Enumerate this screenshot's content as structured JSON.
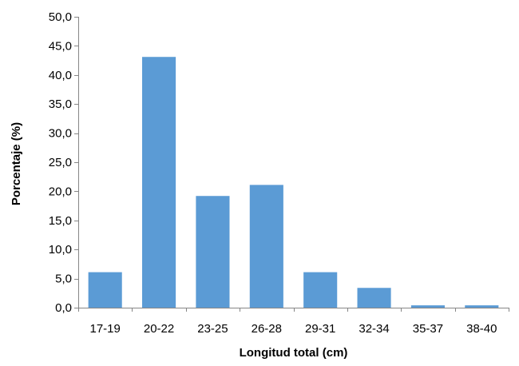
{
  "chart_data": {
    "type": "bar",
    "categories": [
      "17-19",
      "20-22",
      "23-25",
      "26-28",
      "29-31",
      "32-34",
      "35-37",
      "38-40"
    ],
    "values": [
      6.1,
      43.1,
      19.2,
      21.1,
      6.1,
      3.4,
      0.4,
      0.4
    ],
    "title": "",
    "xlabel": "Longitud total (cm)",
    "ylabel": "Porcentaje (%)",
    "ylim": [
      0,
      50
    ],
    "yticks": [
      "0,0",
      "5,0",
      "10,0",
      "15,0",
      "20,0",
      "25,0",
      "30,0",
      "35,0",
      "40,0",
      "45,0",
      "50,0"
    ],
    "grid": false,
    "legend": "none",
    "bar_color": "#5B9BD5",
    "axis_color": "#868686"
  }
}
